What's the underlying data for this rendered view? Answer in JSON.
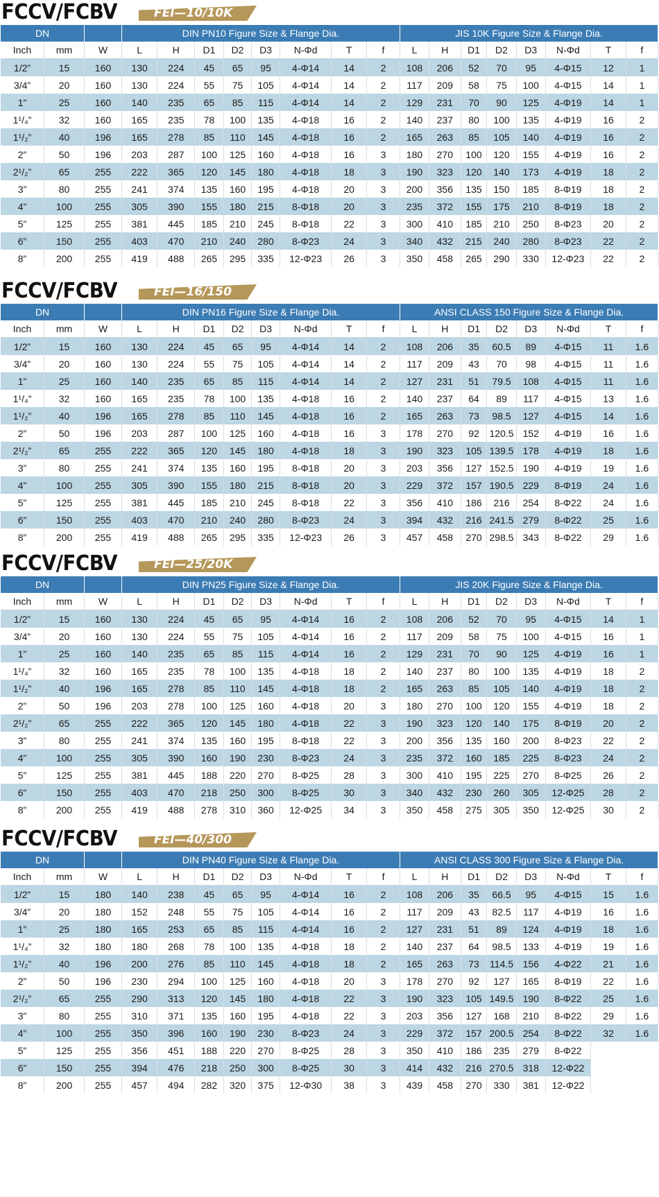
{
  "colors": {
    "header_blue": "#3c7cb4",
    "band_blue": "#bcd6e3",
    "tag_gold": "#b5975a"
  },
  "sub_headers": [
    "Inch",
    "mm",
    "W",
    "L",
    "H",
    "D1",
    "D2",
    "D3",
    "N-Φd",
    "T",
    "f",
    "L",
    "H",
    "D1",
    "D2",
    "D3",
    "N-Φd",
    "T",
    "f"
  ],
  "sections": [
    {
      "title_main": "FCCV/FCBV",
      "title_sub": "FEI—10/10K",
      "dn_label": "DN",
      "din_label": "DIN PN10  Figure Size  &  Flange Dia.",
      "std_label": "JIS 10K  Figure Size & Flange Dia.",
      "rows": [
        [
          "1/2”",
          "15",
          "160",
          "130",
          "224",
          "45",
          "65",
          "95",
          "4-Φ14",
          "14",
          "2",
          "108",
          "206",
          "52",
          "70",
          "95",
          "4-Φ15",
          "12",
          "1"
        ],
        [
          "3/4”",
          "20",
          "160",
          "130",
          "224",
          "55",
          "75",
          "105",
          "4-Φ14",
          "14",
          "2",
          "117",
          "209",
          "58",
          "75",
          "100",
          "4-Φ15",
          "14",
          "1"
        ],
        [
          "1”",
          "25",
          "160",
          "140",
          "235",
          "65",
          "85",
          "115",
          "4-Φ14",
          "14",
          "2",
          "129",
          "231",
          "70",
          "90",
          "125",
          "4-Φ19",
          "14",
          "1"
        ],
        [
          "1¹/₄”",
          "32",
          "160",
          "165",
          "235",
          "78",
          "100",
          "135",
          "4-Φ18",
          "16",
          "2",
          "140",
          "237",
          "80",
          "100",
          "135",
          "4-Φ19",
          "16",
          "2"
        ],
        [
          "1¹/₂”",
          "40",
          "196",
          "165",
          "278",
          "85",
          "110",
          "145",
          "4-Φ18",
          "16",
          "2",
          "165",
          "263",
          "85",
          "105",
          "140",
          "4-Φ19",
          "16",
          "2"
        ],
        [
          "2”",
          "50",
          "196",
          "203",
          "287",
          "100",
          "125",
          "160",
          "4-Φ18",
          "16",
          "3",
          "180",
          "270",
          "100",
          "120",
          "155",
          "4-Φ19",
          "16",
          "2"
        ],
        [
          "2¹/₂”",
          "65",
          "255",
          "222",
          "365",
          "120",
          "145",
          "180",
          "4-Φ18",
          "18",
          "3",
          "190",
          "323",
          "120",
          "140",
          "173",
          "4-Φ19",
          "18",
          "2"
        ],
        [
          "3”",
          "80",
          "255",
          "241",
          "374",
          "135",
          "160",
          "195",
          "4-Φ18",
          "20",
          "3",
          "200",
          "356",
          "135",
          "150",
          "185",
          "8-Φ19",
          "18",
          "2"
        ],
        [
          "4”",
          "100",
          "255",
          "305",
          "390",
          "155",
          "180",
          "215",
          "8-Φ18",
          "20",
          "3",
          "235",
          "372",
          "155",
          "175",
          "210",
          "8-Φ19",
          "18",
          "2"
        ],
        [
          "5”",
          "125",
          "255",
          "381",
          "445",
          "185",
          "210",
          "245",
          "8-Φ18",
          "22",
          "3",
          "300",
          "410",
          "185",
          "210",
          "250",
          "8-Φ23",
          "20",
          "2"
        ],
        [
          "6”",
          "150",
          "255",
          "403",
          "470",
          "210",
          "240",
          "280",
          "8-Φ23",
          "24",
          "3",
          "340",
          "432",
          "215",
          "240",
          "280",
          "8-Φ23",
          "22",
          "2"
        ],
        [
          "8”",
          "200",
          "255",
          "419",
          "488",
          "265",
          "295",
          "335",
          "12-Φ23",
          "26",
          "3",
          "350",
          "458",
          "265",
          "290",
          "330",
          "12-Φ23",
          "22",
          "2"
        ]
      ]
    },
    {
      "title_main": "FCCV/FCBV",
      "title_sub": "FEI—16/150",
      "dn_label": "DN",
      "din_label": "DIN PN16  Figure Size  &  Flange Dia.",
      "std_label": "ANSI CLASS 150  Figure Size & Flange Dia.",
      "rows": [
        [
          "1/2”",
          "15",
          "160",
          "130",
          "224",
          "45",
          "65",
          "95",
          "4-Φ14",
          "14",
          "2",
          "108",
          "206",
          "35",
          "60.5",
          "89",
          "4-Φ15",
          "11",
          "1.6"
        ],
        [
          "3/4”",
          "20",
          "160",
          "130",
          "224",
          "55",
          "75",
          "105",
          "4-Φ14",
          "14",
          "2",
          "117",
          "209",
          "43",
          "70",
          "98",
          "4-Φ15",
          "11",
          "1.6"
        ],
        [
          "1”",
          "25",
          "160",
          "140",
          "235",
          "65",
          "85",
          "115",
          "4-Φ14",
          "14",
          "2",
          "127",
          "231",
          "51",
          "79.5",
          "108",
          "4-Φ15",
          "11",
          "1.6"
        ],
        [
          "1¹/₄”",
          "32",
          "160",
          "165",
          "235",
          "78",
          "100",
          "135",
          "4-Φ18",
          "16",
          "2",
          "140",
          "237",
          "64",
          "89",
          "117",
          "4-Φ15",
          "13",
          "1.6"
        ],
        [
          "1¹/₂”",
          "40",
          "196",
          "165",
          "278",
          "85",
          "110",
          "145",
          "4-Φ18",
          "16",
          "2",
          "165",
          "263",
          "73",
          "98.5",
          "127",
          "4-Φ15",
          "14",
          "1.6"
        ],
        [
          "2”",
          "50",
          "196",
          "203",
          "287",
          "100",
          "125",
          "160",
          "4-Φ18",
          "16",
          "3",
          "178",
          "270",
          "92",
          "120.5",
          "152",
          "4-Φ19",
          "16",
          "1.6"
        ],
        [
          "2¹/₂”",
          "65",
          "255",
          "222",
          "365",
          "120",
          "145",
          "180",
          "4-Φ18",
          "18",
          "3",
          "190",
          "323",
          "105",
          "139.5",
          "178",
          "4-Φ19",
          "18",
          "1.6"
        ],
        [
          "3”",
          "80",
          "255",
          "241",
          "374",
          "135",
          "160",
          "195",
          "8-Φ18",
          "20",
          "3",
          "203",
          "356",
          "127",
          "152.5",
          "190",
          "4-Φ19",
          "19",
          "1.6"
        ],
        [
          "4”",
          "100",
          "255",
          "305",
          "390",
          "155",
          "180",
          "215",
          "8-Φ18",
          "20",
          "3",
          "229",
          "372",
          "157",
          "190.5",
          "229",
          "8-Φ19",
          "24",
          "1.6"
        ],
        [
          "5”",
          "125",
          "255",
          "381",
          "445",
          "185",
          "210",
          "245",
          "8-Φ18",
          "22",
          "3",
          "356",
          "410",
          "186",
          "216",
          "254",
          "8-Φ22",
          "24",
          "1.6"
        ],
        [
          "6”",
          "150",
          "255",
          "403",
          "470",
          "210",
          "240",
          "280",
          "8-Φ23",
          "24",
          "3",
          "394",
          "432",
          "216",
          "241.5",
          "279",
          "8-Φ22",
          "25",
          "1.6"
        ],
        [
          "8”",
          "200",
          "255",
          "419",
          "488",
          "265",
          "295",
          "335",
          "12-Φ23",
          "26",
          "3",
          "457",
          "458",
          "270",
          "298.5",
          "343",
          "8-Φ22",
          "29",
          "1.6"
        ]
      ]
    },
    {
      "title_main": "FCCV/FCBV",
      "title_sub": "FEI—25/20K",
      "dn_label": "DN",
      "din_label": "DIN PN25  Figure Size  &  Flange Dia.",
      "std_label": "JIS 20K  Figure Size & Flange Dia.",
      "rows": [
        [
          "1/2”",
          "15",
          "160",
          "130",
          "224",
          "45",
          "65",
          "95",
          "4-Φ14",
          "16",
          "2",
          "108",
          "206",
          "52",
          "70",
          "95",
          "4-Φ15",
          "14",
          "1"
        ],
        [
          "3/4”",
          "20",
          "160",
          "130",
          "224",
          "55",
          "75",
          "105",
          "4-Φ14",
          "16",
          "2",
          "117",
          "209",
          "58",
          "75",
          "100",
          "4-Φ15",
          "16",
          "1"
        ],
        [
          "1”",
          "25",
          "160",
          "140",
          "235",
          "65",
          "85",
          "115",
          "4-Φ14",
          "16",
          "2",
          "129",
          "231",
          "70",
          "90",
          "125",
          "4-Φ19",
          "16",
          "1"
        ],
        [
          "1¹/₄”",
          "32",
          "160",
          "165",
          "235",
          "78",
          "100",
          "135",
          "4-Φ18",
          "18",
          "2",
          "140",
          "237",
          "80",
          "100",
          "135",
          "4-Φ19",
          "18",
          "2"
        ],
        [
          "1¹/₂”",
          "40",
          "196",
          "165",
          "278",
          "85",
          "110",
          "145",
          "4-Φ18",
          "18",
          "2",
          "165",
          "263",
          "85",
          "105",
          "140",
          "4-Φ19",
          "18",
          "2"
        ],
        [
          "2”",
          "50",
          "196",
          "203",
          "278",
          "100",
          "125",
          "160",
          "4-Φ18",
          "20",
          "3",
          "180",
          "270",
          "100",
          "120",
          "155",
          "4-Φ19",
          "18",
          "2"
        ],
        [
          "2¹/₂”",
          "65",
          "255",
          "222",
          "365",
          "120",
          "145",
          "180",
          "4-Φ18",
          "22",
          "3",
          "190",
          "323",
          "120",
          "140",
          "175",
          "8-Φ19",
          "20",
          "2"
        ],
        [
          "3”",
          "80",
          "255",
          "241",
          "374",
          "135",
          "160",
          "195",
          "8-Φ18",
          "22",
          "3",
          "200",
          "356",
          "135",
          "160",
          "200",
          "8-Φ23",
          "22",
          "2"
        ],
        [
          "4”",
          "100",
          "255",
          "305",
          "390",
          "160",
          "190",
          "230",
          "8-Φ23",
          "24",
          "3",
          "235",
          "372",
          "160",
          "185",
          "225",
          "8-Φ23",
          "24",
          "2"
        ],
        [
          "5”",
          "125",
          "255",
          "381",
          "445",
          "188",
          "220",
          "270",
          "8-Φ25",
          "28",
          "3",
          "300",
          "410",
          "195",
          "225",
          "270",
          "8-Φ25",
          "26",
          "2"
        ],
        [
          "6”",
          "150",
          "255",
          "403",
          "470",
          "218",
          "250",
          "300",
          "8-Φ25",
          "30",
          "3",
          "340",
          "432",
          "230",
          "260",
          "305",
          "12-Φ25",
          "28",
          "2"
        ],
        [
          "8”",
          "200",
          "255",
          "419",
          "488",
          "278",
          "310",
          "360",
          "12-Φ25",
          "34",
          "3",
          "350",
          "458",
          "275",
          "305",
          "350",
          "12-Φ25",
          "30",
          "2"
        ]
      ]
    },
    {
      "title_main": "FCCV/FCBV",
      "title_sub": "FEI—40/300",
      "dn_label": "DN",
      "din_label": "DIN PN40  Figure Size  &  Flange Dia.",
      "std_label": "ANSI CLASS 300 Figure Size & Flange Dia.",
      "rows": [
        [
          "1/2”",
          "15",
          "180",
          "140",
          "238",
          "45",
          "65",
          "95",
          "4-Φ14",
          "16",
          "2",
          "108",
          "206",
          "35",
          "66.5",
          "95",
          "4-Φ15",
          "15",
          "1.6"
        ],
        [
          "3/4”",
          "20",
          "180",
          "152",
          "248",
          "55",
          "75",
          "105",
          "4-Φ14",
          "16",
          "2",
          "117",
          "209",
          "43",
          "82.5",
          "117",
          "4-Φ19",
          "16",
          "1.6"
        ],
        [
          "1”",
          "25",
          "180",
          "165",
          "253",
          "65",
          "85",
          "115",
          "4-Φ14",
          "16",
          "2",
          "127",
          "231",
          "51",
          "89",
          "124",
          "4-Φ19",
          "18",
          "1.6"
        ],
        [
          "1¹/₄”",
          "32",
          "180",
          "180",
          "268",
          "78",
          "100",
          "135",
          "4-Φ18",
          "18",
          "2",
          "140",
          "237",
          "64",
          "98.5",
          "133",
          "4-Φ19",
          "19",
          "1.6"
        ],
        [
          "1¹/₂”",
          "40",
          "196",
          "200",
          "276",
          "85",
          "110",
          "145",
          "4-Φ18",
          "18",
          "2",
          "165",
          "263",
          "73",
          "114.5",
          "156",
          "4-Φ22",
          "21",
          "1.6"
        ],
        [
          "2”",
          "50",
          "196",
          "230",
          "294",
          "100",
          "125",
          "160",
          "4-Φ18",
          "20",
          "3",
          "178",
          "270",
          "92",
          "127",
          "165",
          "8-Φ19",
          "22",
          "1.6"
        ],
        [
          "2¹/₂”",
          "65",
          "255",
          "290",
          "313",
          "120",
          "145",
          "180",
          "4-Φ18",
          "22",
          "3",
          "190",
          "323",
          "105",
          "149.5",
          "190",
          "8-Φ22",
          "25",
          "1.6"
        ],
        [
          "3”",
          "80",
          "255",
          "310",
          "371",
          "135",
          "160",
          "195",
          "4-Φ18",
          "22",
          "3",
          "203",
          "356",
          "127",
          "168",
          "210",
          "8-Φ22",
          "29",
          "1.6"
        ],
        [
          "4”",
          "100",
          "255",
          "350",
          "396",
          "160",
          "190",
          "230",
          "8-Φ23",
          "24",
          "3",
          "229",
          "372",
          "157",
          "200.5",
          "254",
          "8-Φ22",
          "32",
          "1.6"
        ],
        [
          "5”",
          "125",
          "255",
          "356",
          "451",
          "188",
          "220",
          "270",
          "8-Φ25",
          "28",
          "3",
          "350",
          "410",
          "186",
          "235",
          "279",
          "8-Φ22",
          "",
          ""
        ],
        [
          "6”",
          "150",
          "255",
          "394",
          "476",
          "218",
          "250",
          "300",
          "8-Φ25",
          "30",
          "3",
          "414",
          "432",
          "216",
          "270.5",
          "318",
          "12-Φ22",
          "",
          ""
        ],
        [
          "8”",
          "200",
          "255",
          "457",
          "494",
          "282",
          "320",
          "375",
          "12-Φ30",
          "38",
          "3",
          "439",
          "458",
          "270",
          "330",
          "381",
          "12-Φ22",
          "",
          ""
        ]
      ]
    }
  ]
}
